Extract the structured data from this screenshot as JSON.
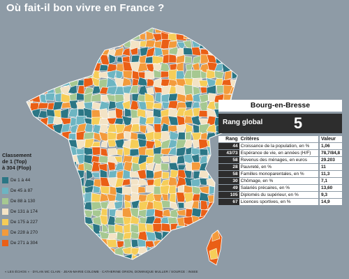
{
  "title": "Où fait-il bon vivre en France ?",
  "legend": {
    "title_lines": [
      "Classement",
      "de 1 (Top)",
      "à 304 (Flop)"
    ],
    "items": [
      {
        "label": "De 1 à 44",
        "color": "#2b7685"
      },
      {
        "label": "De 45 à 87",
        "color": "#6db5c2"
      },
      {
        "label": "De 88 à 130",
        "color": "#a6c891"
      },
      {
        "label": "De 131 à 174",
        "color": "#f3e3c5"
      },
      {
        "label": "De 175 à 227",
        "color": "#f6cd58"
      },
      {
        "label": "De 228 à 270",
        "color": "#f39b3c"
      },
      {
        "label": "De 271 à 304",
        "color": "#ea5f16"
      }
    ]
  },
  "panel": {
    "city": "Bourg-en-Bresse",
    "rank_label": "Rang global",
    "rank_value": "5",
    "columns": {
      "rank": "Rang",
      "criteria": "Critères",
      "value": "Valeur"
    },
    "rows": [
      {
        "rank": "44",
        "criteria": "Croissance de la population, en %",
        "value": "1,06"
      },
      {
        "rank": "43/73",
        "criteria": "Espérance de vie, en années (H/F)",
        "value": "78,7/84,8"
      },
      {
        "rank": "58",
        "criteria": "Revenus des ménages, en euros",
        "value": "29.203"
      },
      {
        "rank": "28",
        "criteria": "Pauvreté, en %",
        "value": "11"
      },
      {
        "rank": "58",
        "criteria": "Familles monoparentales, en %",
        "value": "11,3"
      },
      {
        "rank": "30",
        "criteria": "Chômage, en %",
        "value": "7,1"
      },
      {
        "rank": "49",
        "criteria": "Salariés précaires, en %",
        "value": "13,60"
      },
      {
        "rank": "105",
        "criteria": "Diplomés du supérieur, en %",
        "value": "9,3"
      },
      {
        "rank": "67",
        "criteria": "Licences sportives, en %",
        "value": "14,9"
      }
    ]
  },
  "credits": "« LES ÉCHOS » · DYLAN MC CLAIN · JEAN-MARIE COLOMB · CATHERINE ORION, DOMINIQUE MULLER / SOURCE : INSEE"
}
